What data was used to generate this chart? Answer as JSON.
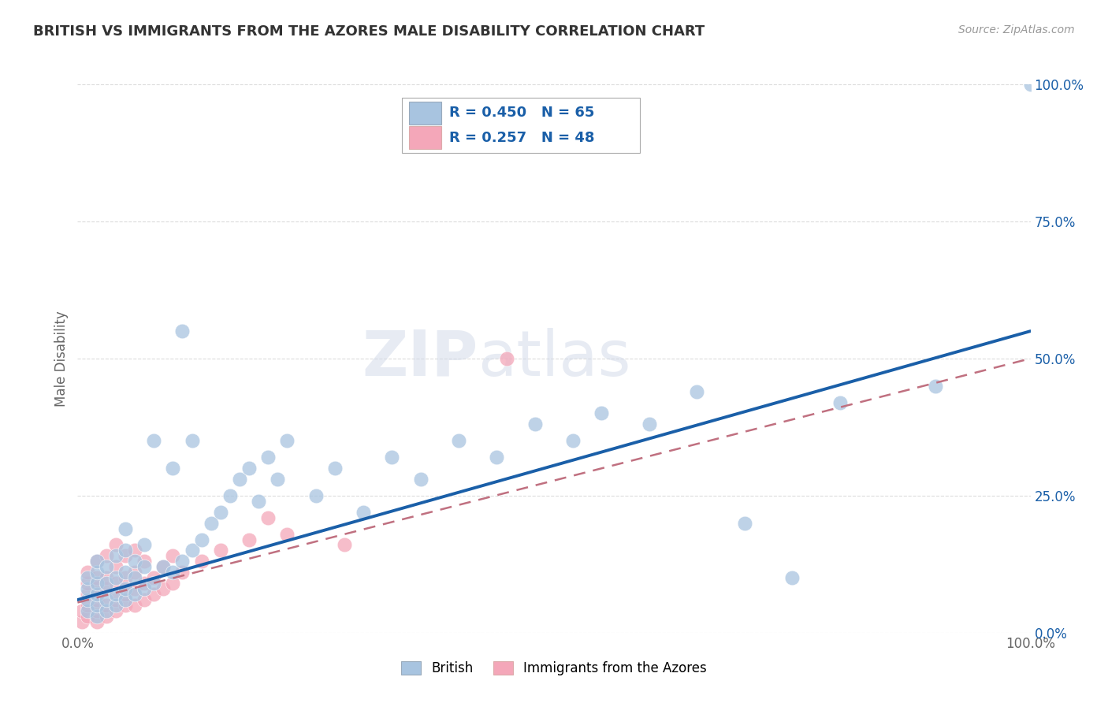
{
  "title": "BRITISH VS IMMIGRANTS FROM THE AZORES MALE DISABILITY CORRELATION CHART",
  "source": "Source: ZipAtlas.com",
  "ylabel": "Male Disability",
  "xlim": [
    0,
    1
  ],
  "ylim": [
    0,
    1
  ],
  "watermark": "ZIPatlas",
  "legend1_label": "British",
  "legend2_label": "Immigrants from the Azores",
  "r1": 0.45,
  "n1": 65,
  "r2": 0.257,
  "n2": 48,
  "british_color": "#a8c4e0",
  "azores_color": "#f4a7b9",
  "british_line_color": "#1a5fa8",
  "azores_line_color": "#c07080",
  "grid_color": "#cccccc",
  "title_color": "#333333",
  "stat_color": "#1a5fa8",
  "background_color": "#ffffff",
  "british_x": [
    0.01,
    0.01,
    0.01,
    0.01,
    0.02,
    0.02,
    0.02,
    0.02,
    0.02,
    0.02,
    0.03,
    0.03,
    0.03,
    0.03,
    0.04,
    0.04,
    0.04,
    0.04,
    0.05,
    0.05,
    0.05,
    0.05,
    0.05,
    0.06,
    0.06,
    0.06,
    0.07,
    0.07,
    0.07,
    0.08,
    0.08,
    0.09,
    0.1,
    0.1,
    0.11,
    0.11,
    0.12,
    0.12,
    0.13,
    0.14,
    0.15,
    0.16,
    0.17,
    0.18,
    0.19,
    0.2,
    0.21,
    0.22,
    0.25,
    0.27,
    0.3,
    0.33,
    0.36,
    0.4,
    0.44,
    0.48,
    0.52,
    0.55,
    0.6,
    0.65,
    0.7,
    0.75,
    0.8,
    0.9,
    1.0
  ],
  "british_y": [
    0.04,
    0.06,
    0.08,
    0.1,
    0.03,
    0.05,
    0.07,
    0.09,
    0.11,
    0.13,
    0.04,
    0.06,
    0.09,
    0.12,
    0.05,
    0.07,
    0.1,
    0.14,
    0.06,
    0.08,
    0.11,
    0.15,
    0.19,
    0.07,
    0.1,
    0.13,
    0.08,
    0.12,
    0.16,
    0.09,
    0.35,
    0.12,
    0.11,
    0.3,
    0.13,
    0.55,
    0.15,
    0.35,
    0.17,
    0.2,
    0.22,
    0.25,
    0.28,
    0.3,
    0.24,
    0.32,
    0.28,
    0.35,
    0.25,
    0.3,
    0.22,
    0.32,
    0.28,
    0.35,
    0.32,
    0.38,
    0.35,
    0.4,
    0.38,
    0.44,
    0.2,
    0.1,
    0.42,
    0.45,
    1.0
  ],
  "azores_x": [
    0.005,
    0.005,
    0.01,
    0.01,
    0.01,
    0.01,
    0.01,
    0.02,
    0.02,
    0.02,
    0.02,
    0.02,
    0.02,
    0.03,
    0.03,
    0.03,
    0.03,
    0.03,
    0.04,
    0.04,
    0.04,
    0.04,
    0.04,
    0.05,
    0.05,
    0.05,
    0.05,
    0.06,
    0.06,
    0.06,
    0.06,
    0.07,
    0.07,
    0.07,
    0.08,
    0.08,
    0.09,
    0.09,
    0.1,
    0.1,
    0.11,
    0.13,
    0.15,
    0.18,
    0.2,
    0.22,
    0.28,
    0.45
  ],
  "azores_y": [
    0.02,
    0.04,
    0.03,
    0.05,
    0.07,
    0.09,
    0.11,
    0.02,
    0.04,
    0.06,
    0.08,
    0.1,
    0.13,
    0.03,
    0.05,
    0.08,
    0.1,
    0.14,
    0.04,
    0.06,
    0.09,
    0.12,
    0.16,
    0.05,
    0.07,
    0.1,
    0.14,
    0.05,
    0.08,
    0.11,
    0.15,
    0.06,
    0.09,
    0.13,
    0.07,
    0.1,
    0.08,
    0.12,
    0.09,
    0.14,
    0.11,
    0.13,
    0.15,
    0.17,
    0.21,
    0.18,
    0.16,
    0.5
  ],
  "brit_line_x0": 0.0,
  "brit_line_y0": 0.06,
  "brit_line_x1": 1.0,
  "brit_line_y1": 0.55,
  "az_line_x0": 0.0,
  "az_line_y0": 0.055,
  "az_line_x1": 1.0,
  "az_line_y1": 0.5
}
